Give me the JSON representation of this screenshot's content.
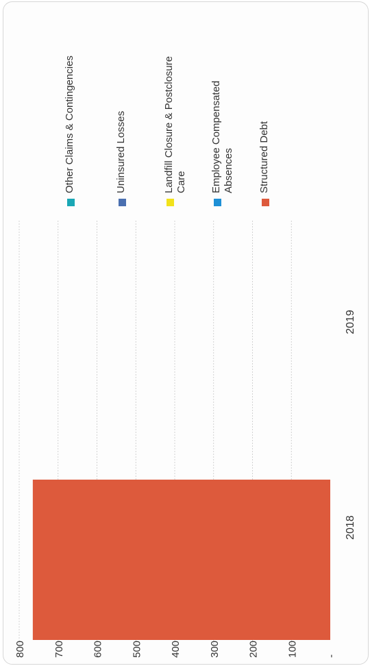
{
  "chart_data": {
    "type": "bar",
    "stacked": true,
    "orientation": "rotated-90",
    "categories": [
      "2018",
      "2019"
    ],
    "series": [
      {
        "name": "Other Claims & Contingencies",
        "values": [
          0,
          0
        ],
        "color": "#1aa7b5"
      },
      {
        "name": "Uninsured Losses",
        "values": [
          0,
          0
        ],
        "color": "#4a6fb0"
      },
      {
        "name": "Landfill Closure & Postclosure Care",
        "values": [
          0,
          0
        ],
        "color": "#f2e21b"
      },
      {
        "name": "Employee Compensated Absences",
        "values": [
          0,
          0
        ],
        "color": "#1e90d6"
      },
      {
        "name": "Structured Debt",
        "values": [
          765,
          0
        ],
        "color": "#dd5a3c"
      }
    ],
    "ylim": [
      0,
      800
    ],
    "y_ticks": [
      "-",
      "100",
      "200",
      "300",
      "400",
      "500",
      "600",
      "700",
      "800"
    ],
    "grid": true,
    "legend_position": "right",
    "title": "",
    "xlabel": "",
    "ylabel": ""
  }
}
